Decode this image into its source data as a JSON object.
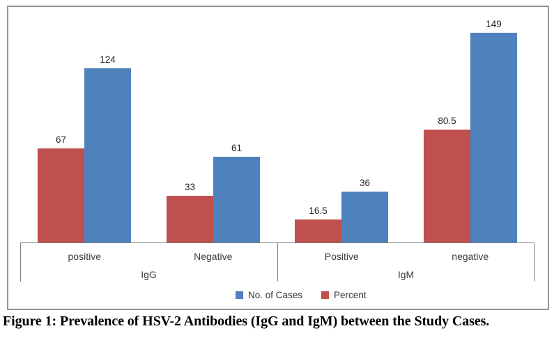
{
  "chart_data": {
    "type": "bar",
    "title": "",
    "groups": [
      {
        "label": "IgG",
        "categories": [
          "positive",
          "Negative"
        ]
      },
      {
        "label": "IgM",
        "categories": [
          "Positive",
          "negative"
        ]
      }
    ],
    "categories": [
      "positive",
      "Negative",
      "Positive",
      "negative"
    ],
    "series": [
      {
        "name": "No. of Cases",
        "color": "#4F81BD",
        "values": [
          124,
          61,
          36,
          149
        ]
      },
      {
        "name": "Percent",
        "color": "#C0504D",
        "values": [
          67,
          33,
          16.5,
          80.5
        ]
      }
    ],
    "series_order_in_pair": [
      "Percent",
      "No. of Cases"
    ],
    "data_labels": true,
    "ylim": [
      0,
      168
    ],
    "value_axis_visible": false,
    "grid": false,
    "legend_position": "bottom-center"
  },
  "caption": "Figure 1: Prevalence of HSV-2 Antibodies (IgG and IgM) between the Study Cases."
}
